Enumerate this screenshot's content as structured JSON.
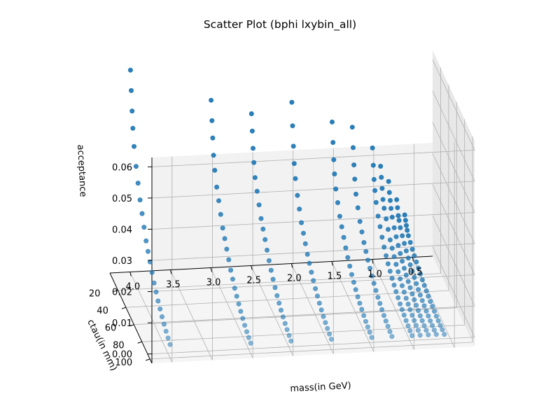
{
  "chart_data": {
    "type": "scatter",
    "projection": "3d",
    "title": "Scatter Plot (bphi lxybin_all)",
    "xlabel": "mass(in GeV)",
    "ylabel": "ctau(in mm)",
    "zlabel": "acceptance",
    "xticks": [
      "4.0",
      "3.5",
      "3.0",
      "2.5",
      "2.0",
      "1.5",
      "1.0",
      "0.5"
    ],
    "yticks": [
      "20",
      "40",
      "60",
      "80",
      "100"
    ],
    "zticks": [
      "0.00",
      "0.01",
      "0.02",
      "0.03",
      "0.04",
      "0.05",
      "0.06"
    ],
    "xlim": [
      0.25,
      4.25
    ],
    "ylim": [
      0,
      105
    ],
    "zlim": [
      -0.003,
      0.063
    ],
    "grid": true,
    "marker_color": "#1f77b4",
    "ctau": [
      1,
      3,
      5,
      7,
      10,
      15,
      20,
      25,
      30,
      35,
      40,
      45,
      50,
      55,
      60,
      65,
      70,
      75,
      80,
      85,
      90,
      95,
      100
    ],
    "series": [
      {
        "mass": 4.0,
        "acceptance": [
          0.062,
          0.056,
          0.05,
          0.045,
          0.04,
          0.035,
          0.031,
          0.027,
          0.024,
          0.021,
          0.018,
          0.016,
          0.014,
          0.012,
          0.01,
          0.0085,
          0.007,
          0.0058,
          0.0047,
          0.0037,
          0.0028,
          0.002,
          0.0013
        ]
      },
      {
        "mass": 3.0,
        "acceptance": [
          0.051,
          0.045,
          0.04,
          0.035,
          0.031,
          0.027,
          0.024,
          0.021,
          0.018,
          0.016,
          0.014,
          0.012,
          0.01,
          0.0085,
          0.007,
          0.0058,
          0.0047,
          0.0037,
          0.0028,
          0.002,
          0.0013,
          0.0008,
          0.0004
        ]
      },
      {
        "mass": 2.5,
        "acceptance": [
          0.046,
          0.041,
          0.036,
          0.032,
          0.028,
          0.025,
          0.022,
          0.019,
          0.017,
          0.015,
          0.013,
          0.011,
          0.0093,
          0.0078,
          0.0065,
          0.0053,
          0.0043,
          0.0034,
          0.0026,
          0.0019,
          0.0013,
          0.0008,
          0.0004
        ]
      },
      {
        "mass": 2.0,
        "acceptance": [
          0.049,
          0.042,
          0.036,
          0.031,
          0.027,
          0.023,
          0.02,
          0.017,
          0.015,
          0.013,
          0.011,
          0.0095,
          0.008,
          0.0067,
          0.0055,
          0.0045,
          0.0036,
          0.0028,
          0.0021,
          0.0015,
          0.001,
          0.0006,
          0.0003
        ]
      },
      {
        "mass": 1.5,
        "acceptance": [
          0.042,
          0.036,
          0.031,
          0.027,
          0.023,
          0.02,
          0.017,
          0.015,
          0.013,
          0.011,
          0.0093,
          0.0079,
          0.0066,
          0.0055,
          0.0045,
          0.0036,
          0.0029,
          0.0023,
          0.0017,
          0.0012,
          0.0008,
          0.0005,
          0.0002
        ]
      },
      {
        "mass": 1.25,
        "acceptance": [
          0.04,
          0.034,
          0.029,
          0.025,
          0.021,
          0.018,
          0.015,
          0.013,
          0.011,
          0.0095,
          0.0081,
          0.0069,
          0.0058,
          0.0048,
          0.0039,
          0.0031,
          0.0025,
          0.0019,
          0.0014,
          0.001,
          0.0007,
          0.0004,
          0.0002
        ]
      },
      {
        "mass": 1.0,
        "acceptance": [
          0.033,
          0.028,
          0.024,
          0.021,
          0.018,
          0.015,
          0.013,
          0.011,
          0.0092,
          0.0078,
          0.0066,
          0.0056,
          0.0047,
          0.0039,
          0.0032,
          0.0026,
          0.002,
          0.0016,
          0.0012,
          0.0008,
          0.0005,
          0.0003,
          0.0001
        ]
      },
      {
        "mass": 0.9,
        "acceptance": [
          0.027,
          0.024,
          0.021,
          0.018,
          0.016,
          0.014,
          0.012,
          0.01,
          0.0087,
          0.0074,
          0.0063,
          0.0053,
          0.0044,
          0.0036,
          0.0029,
          0.0023,
          0.0018,
          0.0014,
          0.001,
          0.0007,
          0.0005,
          0.0003,
          0.0001
        ]
      },
      {
        "mass": 0.8,
        "acceptance": [
          0.022,
          0.019,
          0.017,
          0.015,
          0.013,
          0.011,
          0.0095,
          0.0081,
          0.0069,
          0.0058,
          0.0049,
          0.0041,
          0.0034,
          0.0028,
          0.0022,
          0.0017,
          0.0013,
          0.001,
          0.0007,
          0.0005,
          0.0003,
          0.0002,
          0.0001
        ]
      },
      {
        "mass": 0.7,
        "acceptance": [
          0.016,
          0.014,
          0.012,
          0.011,
          0.0095,
          0.0083,
          0.0072,
          0.0062,
          0.0053,
          0.0045,
          0.0038,
          0.0032,
          0.0026,
          0.0021,
          0.0017,
          0.0013,
          0.001,
          0.0007,
          0.0005,
          0.0003,
          0.0002,
          0.0001,
          0.0001
        ]
      },
      {
        "mass": 0.6,
        "acceptance": [
          0.011,
          0.0098,
          0.0087,
          0.0077,
          0.0068,
          0.006,
          0.0052,
          0.0045,
          0.0039,
          0.0033,
          0.0028,
          0.0023,
          0.0019,
          0.0015,
          0.0012,
          0.0009,
          0.0007,
          0.0005,
          0.0003,
          0.0002,
          0.0001,
          0.0001,
          0.0
        ]
      }
    ]
  }
}
